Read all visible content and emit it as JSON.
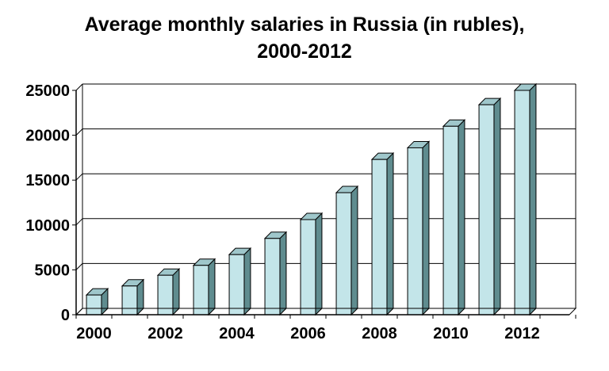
{
  "chart_data": {
    "type": "bar",
    "title_line1": "Average monthly salaries in Russia (in rubles),",
    "title_line2": "2000-2012",
    "xlabel": "",
    "ylabel": "",
    "categories": [
      "2000",
      "2001",
      "2002",
      "2003",
      "2004",
      "2005",
      "2006",
      "2007",
      "2008",
      "2009",
      "2010",
      "2011",
      "2012"
    ],
    "values": [
      2200,
      3200,
      4400,
      5500,
      6700,
      8500,
      10600,
      13600,
      17300,
      18600,
      21000,
      23400,
      25000
    ],
    "x_tick_labels": [
      "2000",
      "2002",
      "2004",
      "2006",
      "2008",
      "2010",
      "2012"
    ],
    "y_tick_labels": [
      "0",
      "5000",
      "10000",
      "15000",
      "20000",
      "25000"
    ],
    "ylim": [
      0,
      25000
    ],
    "grid": true,
    "bar_style": "3d",
    "colors": {
      "bar_front": "#c3e5e9",
      "bar_side": "#5f8c8f",
      "bar_top": "#9fc7cb",
      "grid": "#000000",
      "axis": "#000000"
    }
  }
}
